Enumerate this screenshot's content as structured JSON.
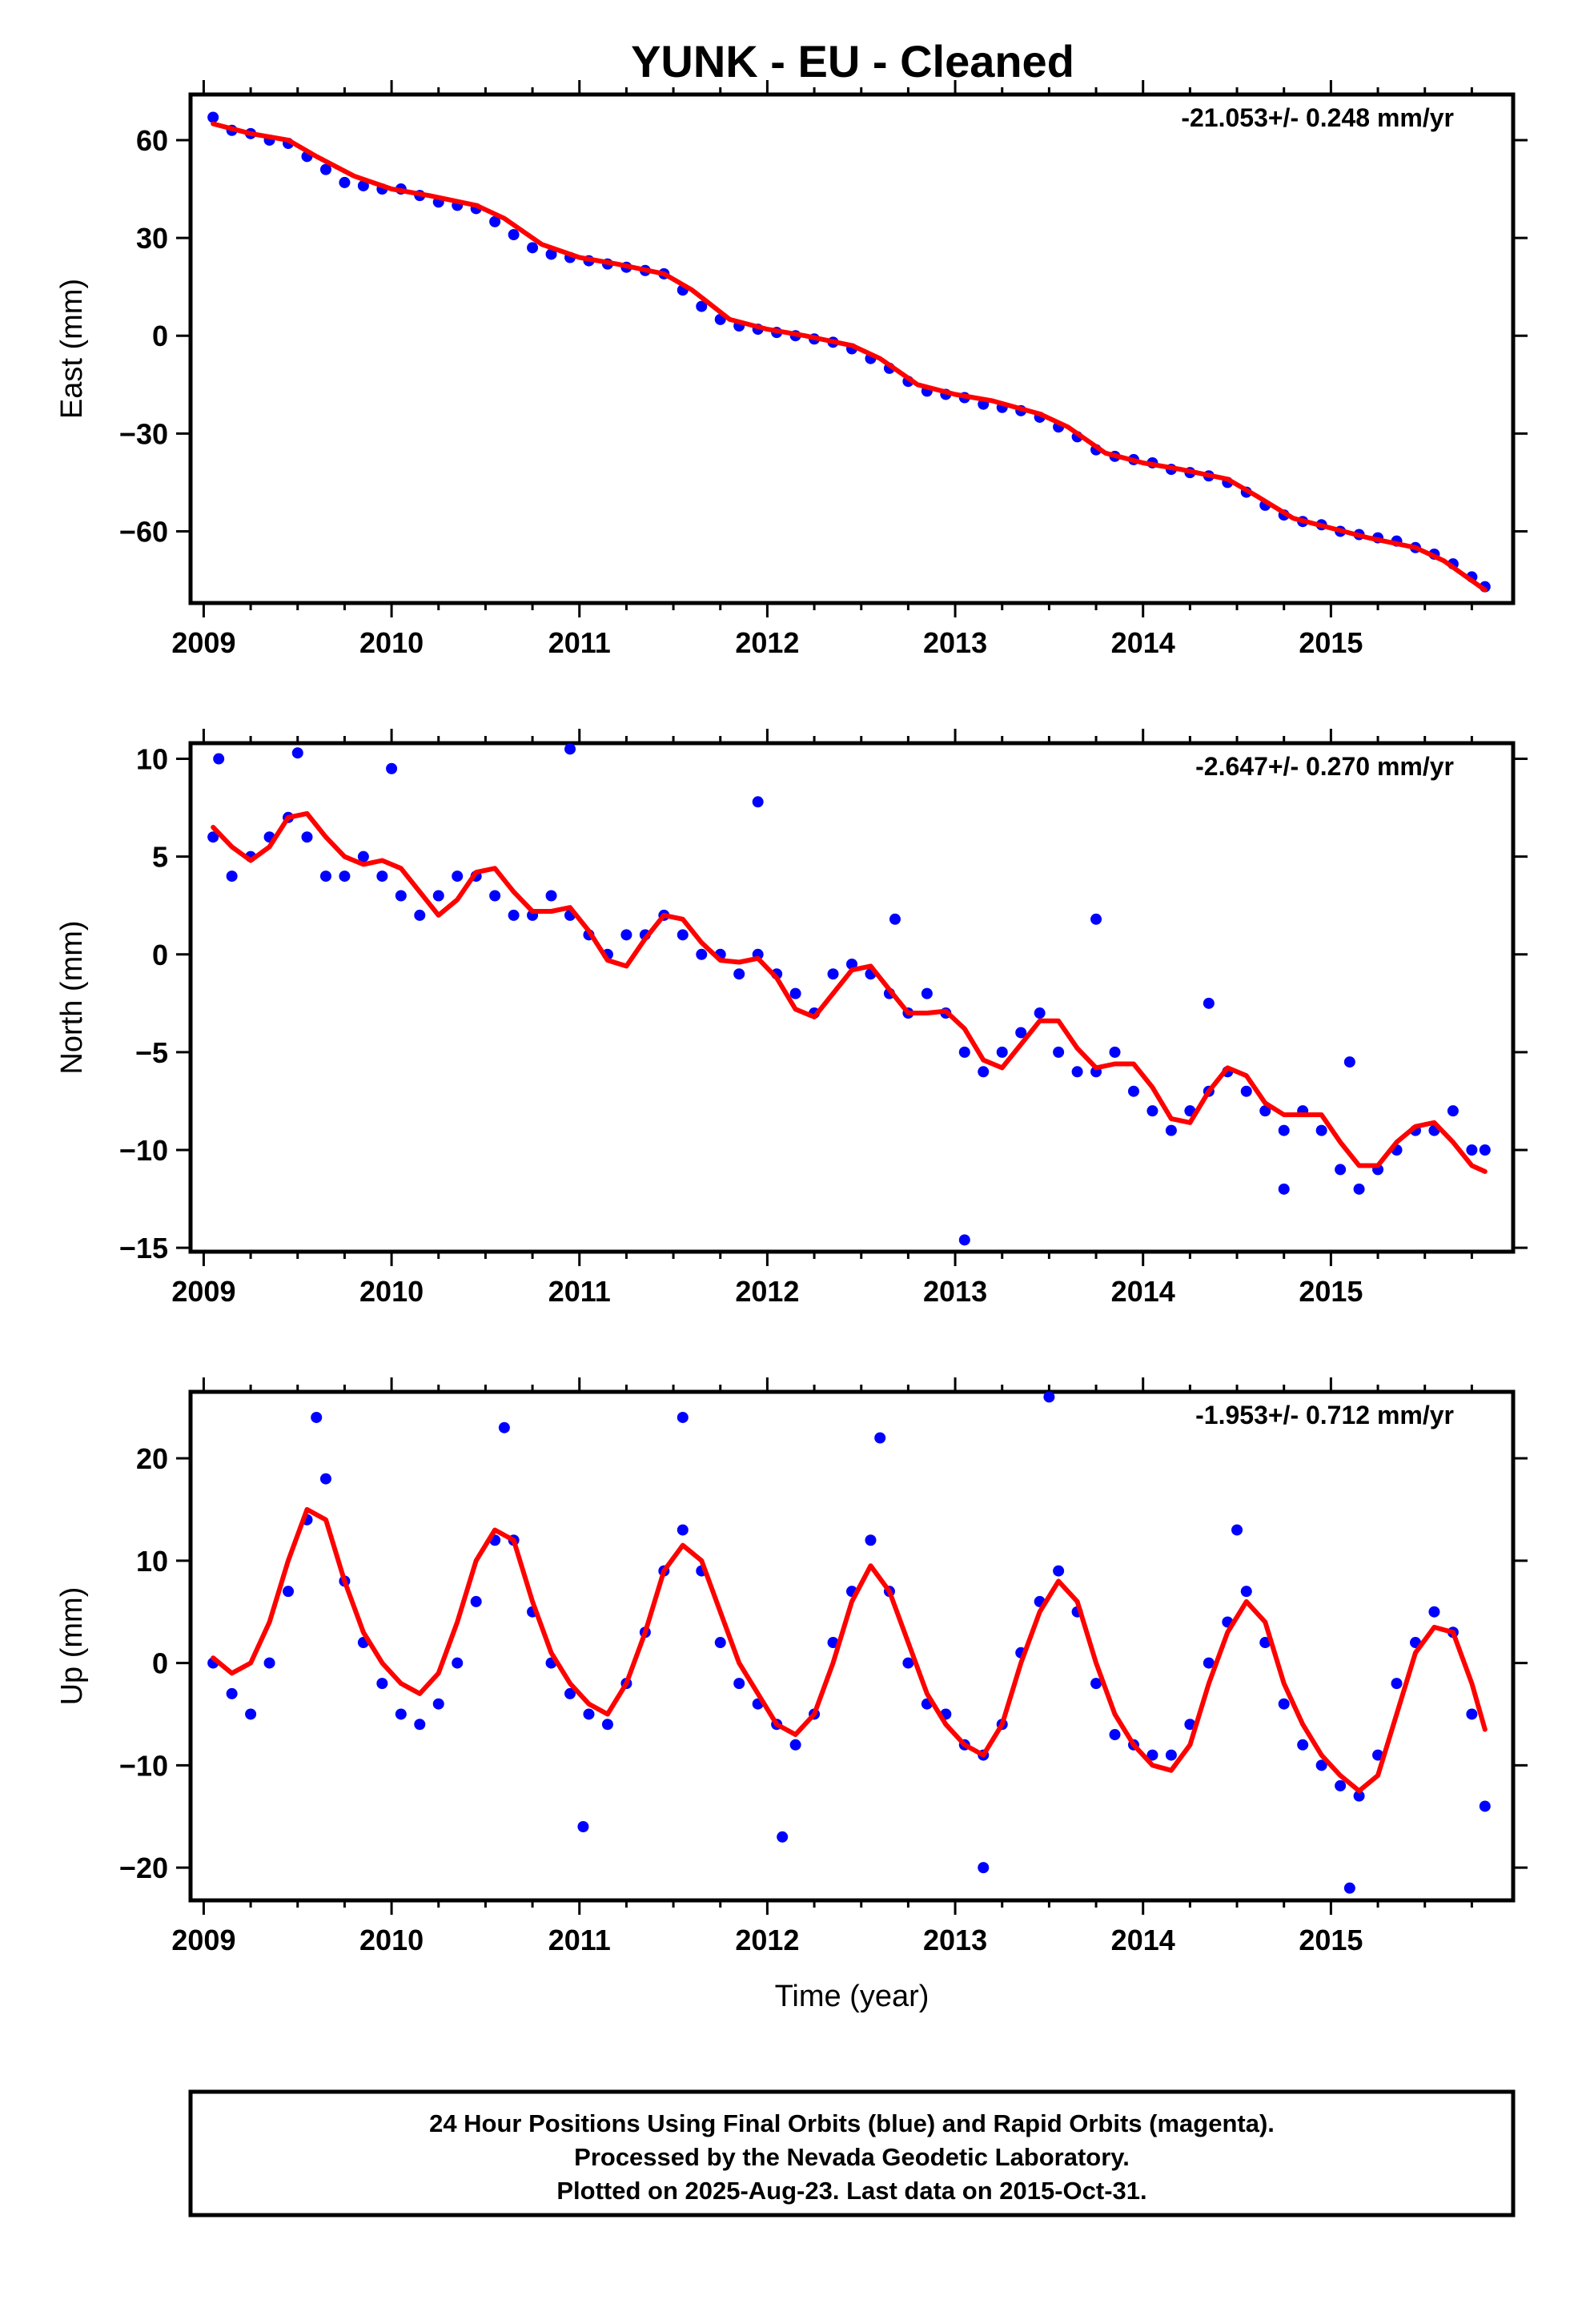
{
  "title": "YUNK  - EU - Cleaned",
  "footer": {
    "lines": [
      "24 Hour Positions Using Final Orbits (blue) and Rapid Orbits (magenta).",
      "Processed by the Nevada Geodetic Laboratory.",
      "Plotted on 2025-Aug-23. Last data on 2015-Oct-31."
    ]
  },
  "colors": {
    "points": "#0000ff",
    "fit": "#ff0000",
    "frame": "#000000"
  },
  "chart_data": [
    {
      "type": "scatter",
      "id": "east",
      "ylabel": "East (mm)",
      "xlabel": "",
      "rate_label": "-21.053+/- 0.248 mm/yr",
      "xlim": [
        2008.93,
        2015.97
      ],
      "ylim": [
        -82,
        74
      ],
      "xticks": [
        2009,
        2010,
        2011,
        2012,
        2013,
        2014,
        2015
      ],
      "yticks": [
        -60,
        -30,
        0,
        30,
        60
      ],
      "series": [
        {
          "kind": "points",
          "color": "#0000ff",
          "x": [
            2009.05,
            2009.15,
            2009.25,
            2009.35,
            2009.45,
            2009.55,
            2009.65,
            2009.75,
            2009.85,
            2009.95,
            2010.05,
            2010.15,
            2010.25,
            2010.35,
            2010.45,
            2010.55,
            2010.65,
            2010.75,
            2010.85,
            2010.95,
            2011.05,
            2011.15,
            2011.25,
            2011.35,
            2011.45,
            2011.55,
            2011.65,
            2011.75,
            2011.85,
            2011.95,
            2012.05,
            2012.15,
            2012.25,
            2012.35,
            2012.45,
            2012.55,
            2012.65,
            2012.75,
            2012.85,
            2012.95,
            2013.05,
            2013.15,
            2013.25,
            2013.35,
            2013.45,
            2013.55,
            2013.65,
            2013.75,
            2013.85,
            2013.95,
            2014.05,
            2014.15,
            2014.25,
            2014.35,
            2014.45,
            2014.55,
            2014.65,
            2014.75,
            2014.85,
            2014.95,
            2015.05,
            2015.15,
            2015.25,
            2015.35,
            2015.45,
            2015.55,
            2015.65,
            2015.75,
            2015.82
          ],
          "y": [
            67,
            63,
            62,
            60,
            59,
            55,
            51,
            47,
            46,
            45,
            45,
            43,
            41,
            40,
            39,
            35,
            31,
            27,
            25,
            24,
            23,
            22,
            21,
            20,
            19,
            14,
            9,
            5,
            3,
            2,
            1,
            0,
            -1,
            -2,
            -4,
            -7,
            -10,
            -14,
            -17,
            -18,
            -19,
            -21,
            -22,
            -23,
            -25,
            -28,
            -31,
            -35,
            -37,
            -38,
            -39,
            -41,
            -42,
            -43,
            -45,
            -48,
            -52,
            -55,
            -57,
            -58,
            -60,
            -61,
            -62,
            -63,
            -65,
            -67,
            -70,
            -74,
            -77
          ]
        },
        {
          "kind": "line",
          "color": "#ff0000",
          "x": [
            2009.05,
            2009.25,
            2009.45,
            2009.6,
            2009.8,
            2010.0,
            2010.2,
            2010.45,
            2010.6,
            2010.8,
            2011.0,
            2011.2,
            2011.45,
            2011.6,
            2011.8,
            2012.0,
            2012.2,
            2012.45,
            2012.6,
            2012.8,
            2013.0,
            2013.2,
            2013.45,
            2013.6,
            2013.8,
            2014.0,
            2014.2,
            2014.45,
            2014.6,
            2014.8,
            2015.0,
            2015.2,
            2015.45,
            2015.6,
            2015.82
          ],
          "y": [
            65,
            62,
            60,
            55,
            49,
            45,
            43,
            40,
            36,
            28,
            24,
            22,
            19,
            14,
            5,
            2,
            0,
            -3,
            -7,
            -15,
            -18,
            -20,
            -24,
            -28,
            -36,
            -39,
            -41,
            -44,
            -49,
            -56,
            -59,
            -62,
            -65,
            -69,
            -78
          ]
        }
      ]
    },
    {
      "type": "scatter",
      "id": "north",
      "ylabel": "North (mm)",
      "xlabel": "",
      "rate_label": "-2.647+/- 0.270 mm/yr",
      "xlim": [
        2008.93,
        2015.97
      ],
      "ylim": [
        -15.2,
        10.8
      ],
      "xticks": [
        2009,
        2010,
        2011,
        2012,
        2013,
        2014,
        2015
      ],
      "yticks": [
        -15,
        -10,
        -5,
        0,
        5,
        10
      ],
      "series": [
        {
          "kind": "points",
          "color": "#0000ff",
          "x": [
            2009.05,
            2009.15,
            2009.25,
            2009.35,
            2009.45,
            2009.55,
            2009.65,
            2009.75,
            2009.85,
            2009.95,
            2010.05,
            2010.15,
            2010.25,
            2010.35,
            2010.45,
            2010.55,
            2010.65,
            2010.75,
            2010.85,
            2010.95,
            2011.05,
            2011.15,
            2011.25,
            2011.35,
            2011.45,
            2011.55,
            2011.65,
            2011.75,
            2011.85,
            2011.95,
            2012.05,
            2012.15,
            2012.25,
            2012.35,
            2012.45,
            2012.55,
            2012.65,
            2012.75,
            2012.85,
            2012.95,
            2013.05,
            2013.15,
            2013.25,
            2013.35,
            2013.45,
            2013.55,
            2013.65,
            2013.75,
            2013.85,
            2013.95,
            2014.05,
            2014.15,
            2014.25,
            2014.35,
            2014.45,
            2014.55,
            2014.65,
            2014.75,
            2014.85,
            2014.95,
            2015.05,
            2015.15,
            2015.25,
            2015.35,
            2015.45,
            2015.55,
            2015.65,
            2015.75,
            2015.82,
            2009.08,
            2009.5,
            2010.0,
            2010.95,
            2011.95,
            2012.68,
            2013.05,
            2013.75,
            2014.35,
            2014.75,
            2015.1
          ],
          "y": [
            6,
            4,
            5,
            6,
            7,
            6,
            4,
            4,
            5,
            4,
            3,
            2,
            3,
            4,
            4,
            3,
            2,
            2,
            3,
            2,
            1,
            0,
            1,
            1,
            2,
            1,
            0,
            0,
            -1,
            0,
            -1,
            -2,
            -3,
            -1,
            -0.5,
            -1,
            -2,
            -3,
            -2,
            -3,
            -5,
            -6,
            -5,
            -4,
            -3,
            -5,
            -6,
            -6,
            -5,
            -7,
            -8,
            -9,
            -8,
            -7,
            -6,
            -7,
            -8,
            -9,
            -8,
            -9,
            -11,
            -12,
            -11,
            -10,
            -9,
            -9,
            -8,
            -10,
            -10,
            10,
            10.3,
            9.5,
            10.5,
            7.8,
            1.8,
            -14.6,
            1.8,
            -2.5,
            -12,
            -5.5
          ]
        },
        {
          "kind": "line",
          "color": "#ff0000",
          "x": [
            2009.05,
            2009.15,
            2009.25,
            2009.35,
            2009.45,
            2009.55,
            2009.65,
            2009.75,
            2009.85,
            2009.95,
            2010.05,
            2010.15,
            2010.25,
            2010.35,
            2010.45,
            2010.55,
            2010.65,
            2010.75,
            2010.85,
            2010.95,
            2011.05,
            2011.15,
            2011.25,
            2011.35,
            2011.45,
            2011.55,
            2011.65,
            2011.75,
            2011.85,
            2011.95,
            2012.05,
            2012.15,
            2012.25,
            2012.35,
            2012.45,
            2012.55,
            2012.65,
            2012.75,
            2012.85,
            2012.95,
            2013.05,
            2013.15,
            2013.25,
            2013.35,
            2013.45,
            2013.55,
            2013.65,
            2013.75,
            2013.85,
            2013.95,
            2014.05,
            2014.15,
            2014.25,
            2014.35,
            2014.45,
            2014.55,
            2014.65,
            2014.75,
            2014.85,
            2014.95,
            2015.05,
            2015.15,
            2015.25,
            2015.35,
            2015.45,
            2015.55,
            2015.65,
            2015.75,
            2015.82
          ],
          "y": [
            6.5,
            5.5,
            4.8,
            5.5,
            7,
            7.2,
            6,
            5,
            4.6,
            4.8,
            4.4,
            3.2,
            2,
            2.8,
            4.2,
            4.4,
            3.2,
            2.2,
            2.2,
            2.4,
            1.2,
            -0.3,
            -0.6,
            0.8,
            2,
            1.8,
            0.6,
            -0.3,
            -0.4,
            -0.2,
            -1.2,
            -2.8,
            -3.2,
            -2,
            -0.8,
            -0.6,
            -1.8,
            -3,
            -3,
            -2.9,
            -3.8,
            -5.4,
            -5.8,
            -4.6,
            -3.4,
            -3.4,
            -4.8,
            -5.8,
            -5.6,
            -5.6,
            -6.8,
            -8.4,
            -8.6,
            -7,
            -5.8,
            -6.2,
            -7.6,
            -8.2,
            -8.2,
            -8.2,
            -9.6,
            -10.8,
            -10.8,
            -9.6,
            -8.8,
            -8.6,
            -9.6,
            -10.8,
            -11.1
          ]
        }
      ]
    },
    {
      "type": "scatter",
      "id": "up",
      "ylabel": "Up (mm)",
      "xlabel": "Time (year)",
      "rate_label": "-1.953+/- 0.712 mm/yr",
      "xlim": [
        2008.93,
        2015.97
      ],
      "ylim": [
        -23.2,
        26.5
      ],
      "xticks": [
        2009,
        2010,
        2011,
        2012,
        2013,
        2014,
        2015
      ],
      "yticks": [
        -20,
        -10,
        0,
        10,
        20
      ],
      "series": [
        {
          "kind": "points",
          "color": "#0000ff",
          "x": [
            2009.05,
            2009.15,
            2009.25,
            2009.35,
            2009.45,
            2009.55,
            2009.65,
            2009.75,
            2009.85,
            2009.95,
            2010.05,
            2010.15,
            2010.25,
            2010.35,
            2010.45,
            2010.55,
            2010.65,
            2010.75,
            2010.85,
            2010.95,
            2011.05,
            2011.15,
            2011.25,
            2011.35,
            2011.45,
            2011.55,
            2011.65,
            2011.75,
            2011.85,
            2011.95,
            2012.05,
            2012.15,
            2012.25,
            2012.35,
            2012.45,
            2012.55,
            2012.65,
            2012.75,
            2012.85,
            2012.95,
            2013.05,
            2013.15,
            2013.25,
            2013.35,
            2013.45,
            2013.55,
            2013.65,
            2013.75,
            2013.85,
            2013.95,
            2014.05,
            2014.15,
            2014.25,
            2014.35,
            2014.45,
            2014.55,
            2014.65,
            2014.75,
            2014.85,
            2014.95,
            2015.05,
            2015.15,
            2015.25,
            2015.35,
            2015.45,
            2015.55,
            2015.65,
            2015.75,
            2015.82,
            2009.6,
            2010.6,
            2011.55,
            2012.6,
            2013.5,
            2014.5,
            2015.1,
            2011.02,
            2012.08,
            2013.15
          ],
          "y": [
            0,
            -3,
            -5,
            0,
            7,
            14,
            18,
            8,
            2,
            -2,
            -5,
            -6,
            -4,
            0,
            6,
            12,
            12,
            5,
            0,
            -3,
            -5,
            -6,
            -2,
            3,
            9,
            13,
            9,
            2,
            -2,
            -4,
            -6,
            -8,
            -5,
            2,
            7,
            12,
            7,
            0,
            -4,
            -5,
            -8,
            -9,
            -6,
            1,
            6,
            9,
            5,
            -2,
            -7,
            -8,
            -9,
            -9,
            -6,
            0,
            4,
            7,
            2,
            -4,
            -8,
            -10,
            -12,
            -13,
            -9,
            -2,
            2,
            5,
            3,
            -5,
            -14,
            24,
            23,
            24,
            22,
            26,
            13,
            -22,
            -16,
            -17,
            -20
          ]
        },
        {
          "kind": "line",
          "color": "#ff0000",
          "x": [
            2009.05,
            2009.15,
            2009.25,
            2009.35,
            2009.45,
            2009.55,
            2009.65,
            2009.75,
            2009.85,
            2009.95,
            2010.05,
            2010.15,
            2010.25,
            2010.35,
            2010.45,
            2010.55,
            2010.65,
            2010.75,
            2010.85,
            2010.95,
            2011.05,
            2011.15,
            2011.25,
            2011.35,
            2011.45,
            2011.55,
            2011.65,
            2011.75,
            2011.85,
            2011.95,
            2012.05,
            2012.15,
            2012.25,
            2012.35,
            2012.45,
            2012.55,
            2012.65,
            2012.75,
            2012.85,
            2012.95,
            2013.05,
            2013.15,
            2013.25,
            2013.35,
            2013.45,
            2013.55,
            2013.65,
            2013.75,
            2013.85,
            2013.95,
            2014.05,
            2014.15,
            2014.25,
            2014.35,
            2014.45,
            2014.55,
            2014.65,
            2014.75,
            2014.85,
            2014.95,
            2015.05,
            2015.15,
            2015.25,
            2015.35,
            2015.45,
            2015.55,
            2015.65,
            2015.75,
            2015.82
          ],
          "y": [
            0.5,
            -1,
            0,
            4,
            10,
            15,
            14,
            8,
            3,
            0,
            -2,
            -3,
            -1,
            4,
            10,
            13,
            12,
            6,
            1,
            -2,
            -4,
            -5,
            -2,
            3,
            9,
            11.5,
            10,
            5,
            0,
            -3,
            -6,
            -7,
            -5,
            0,
            6,
            9.5,
            7,
            2,
            -3,
            -6,
            -8,
            -9,
            -6,
            0,
            5,
            8,
            6,
            0,
            -5,
            -8,
            -10,
            -10.5,
            -8,
            -2,
            3,
            6,
            4,
            -2,
            -6,
            -9,
            -11,
            -12.5,
            -11,
            -5,
            1,
            3.5,
            3,
            -2,
            -6.5
          ]
        }
      ]
    }
  ]
}
